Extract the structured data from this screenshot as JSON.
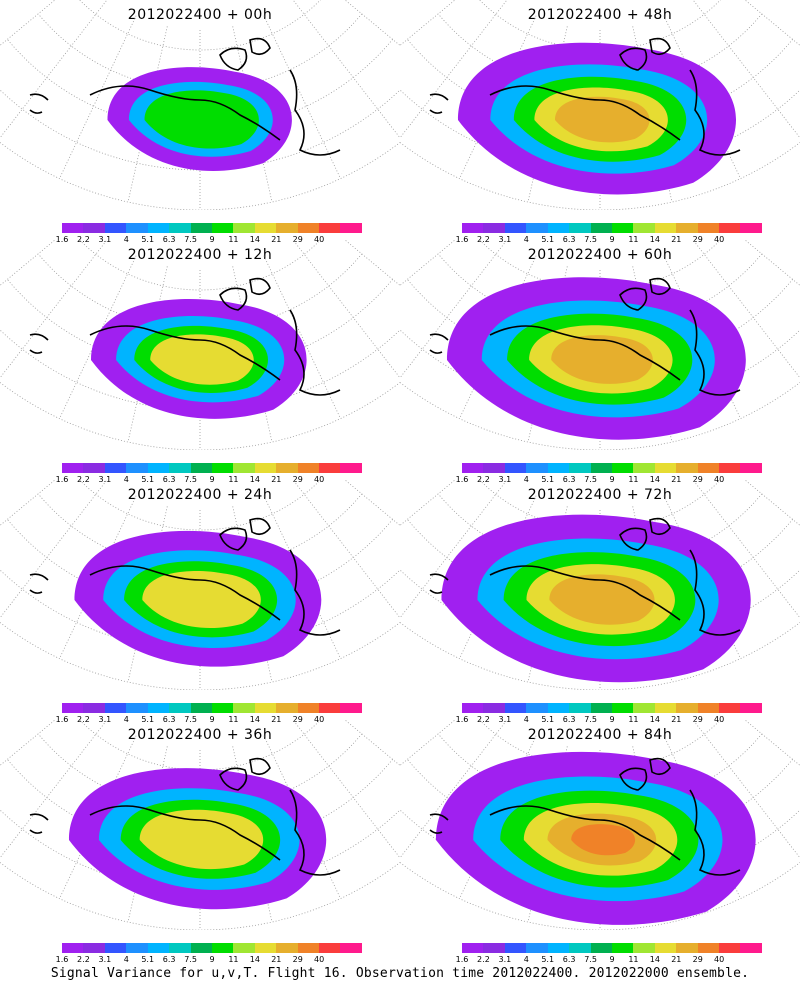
{
  "panels": [
    {
      "title": "2012022400  +  00h"
    },
    {
      "title": "2012022400  +  48h"
    },
    {
      "title": "2012022400  +  12h"
    },
    {
      "title": "2012022400  +  60h"
    },
    {
      "title": "2012022400  +  24h"
    },
    {
      "title": "2012022400  +  72h"
    },
    {
      "title": "2012022400  +  36h"
    },
    {
      "title": "2012022400  +  84h"
    }
  ],
  "legend": {
    "labels": [
      "1.6",
      "2.2",
      "3.1",
      "4",
      "5.1",
      "6.3",
      "7.5",
      "9",
      "11",
      "14",
      "21",
      "29",
      "40"
    ],
    "colors": [
      "#a020f0",
      "#8a2be2",
      "#3355ff",
      "#1e90ff",
      "#00b4ff",
      "#00c8c0",
      "#00b050",
      "#00dd00",
      "#a0e632",
      "#e6dc32",
      "#e6af2d",
      "#f08228",
      "#fa3c3c",
      "#ff1a8c"
    ]
  },
  "footer": {
    "caption": "Signal Variance for u,v,T. Flight 16. Observation time 2012022400. 2012022000 ensemble."
  }
}
